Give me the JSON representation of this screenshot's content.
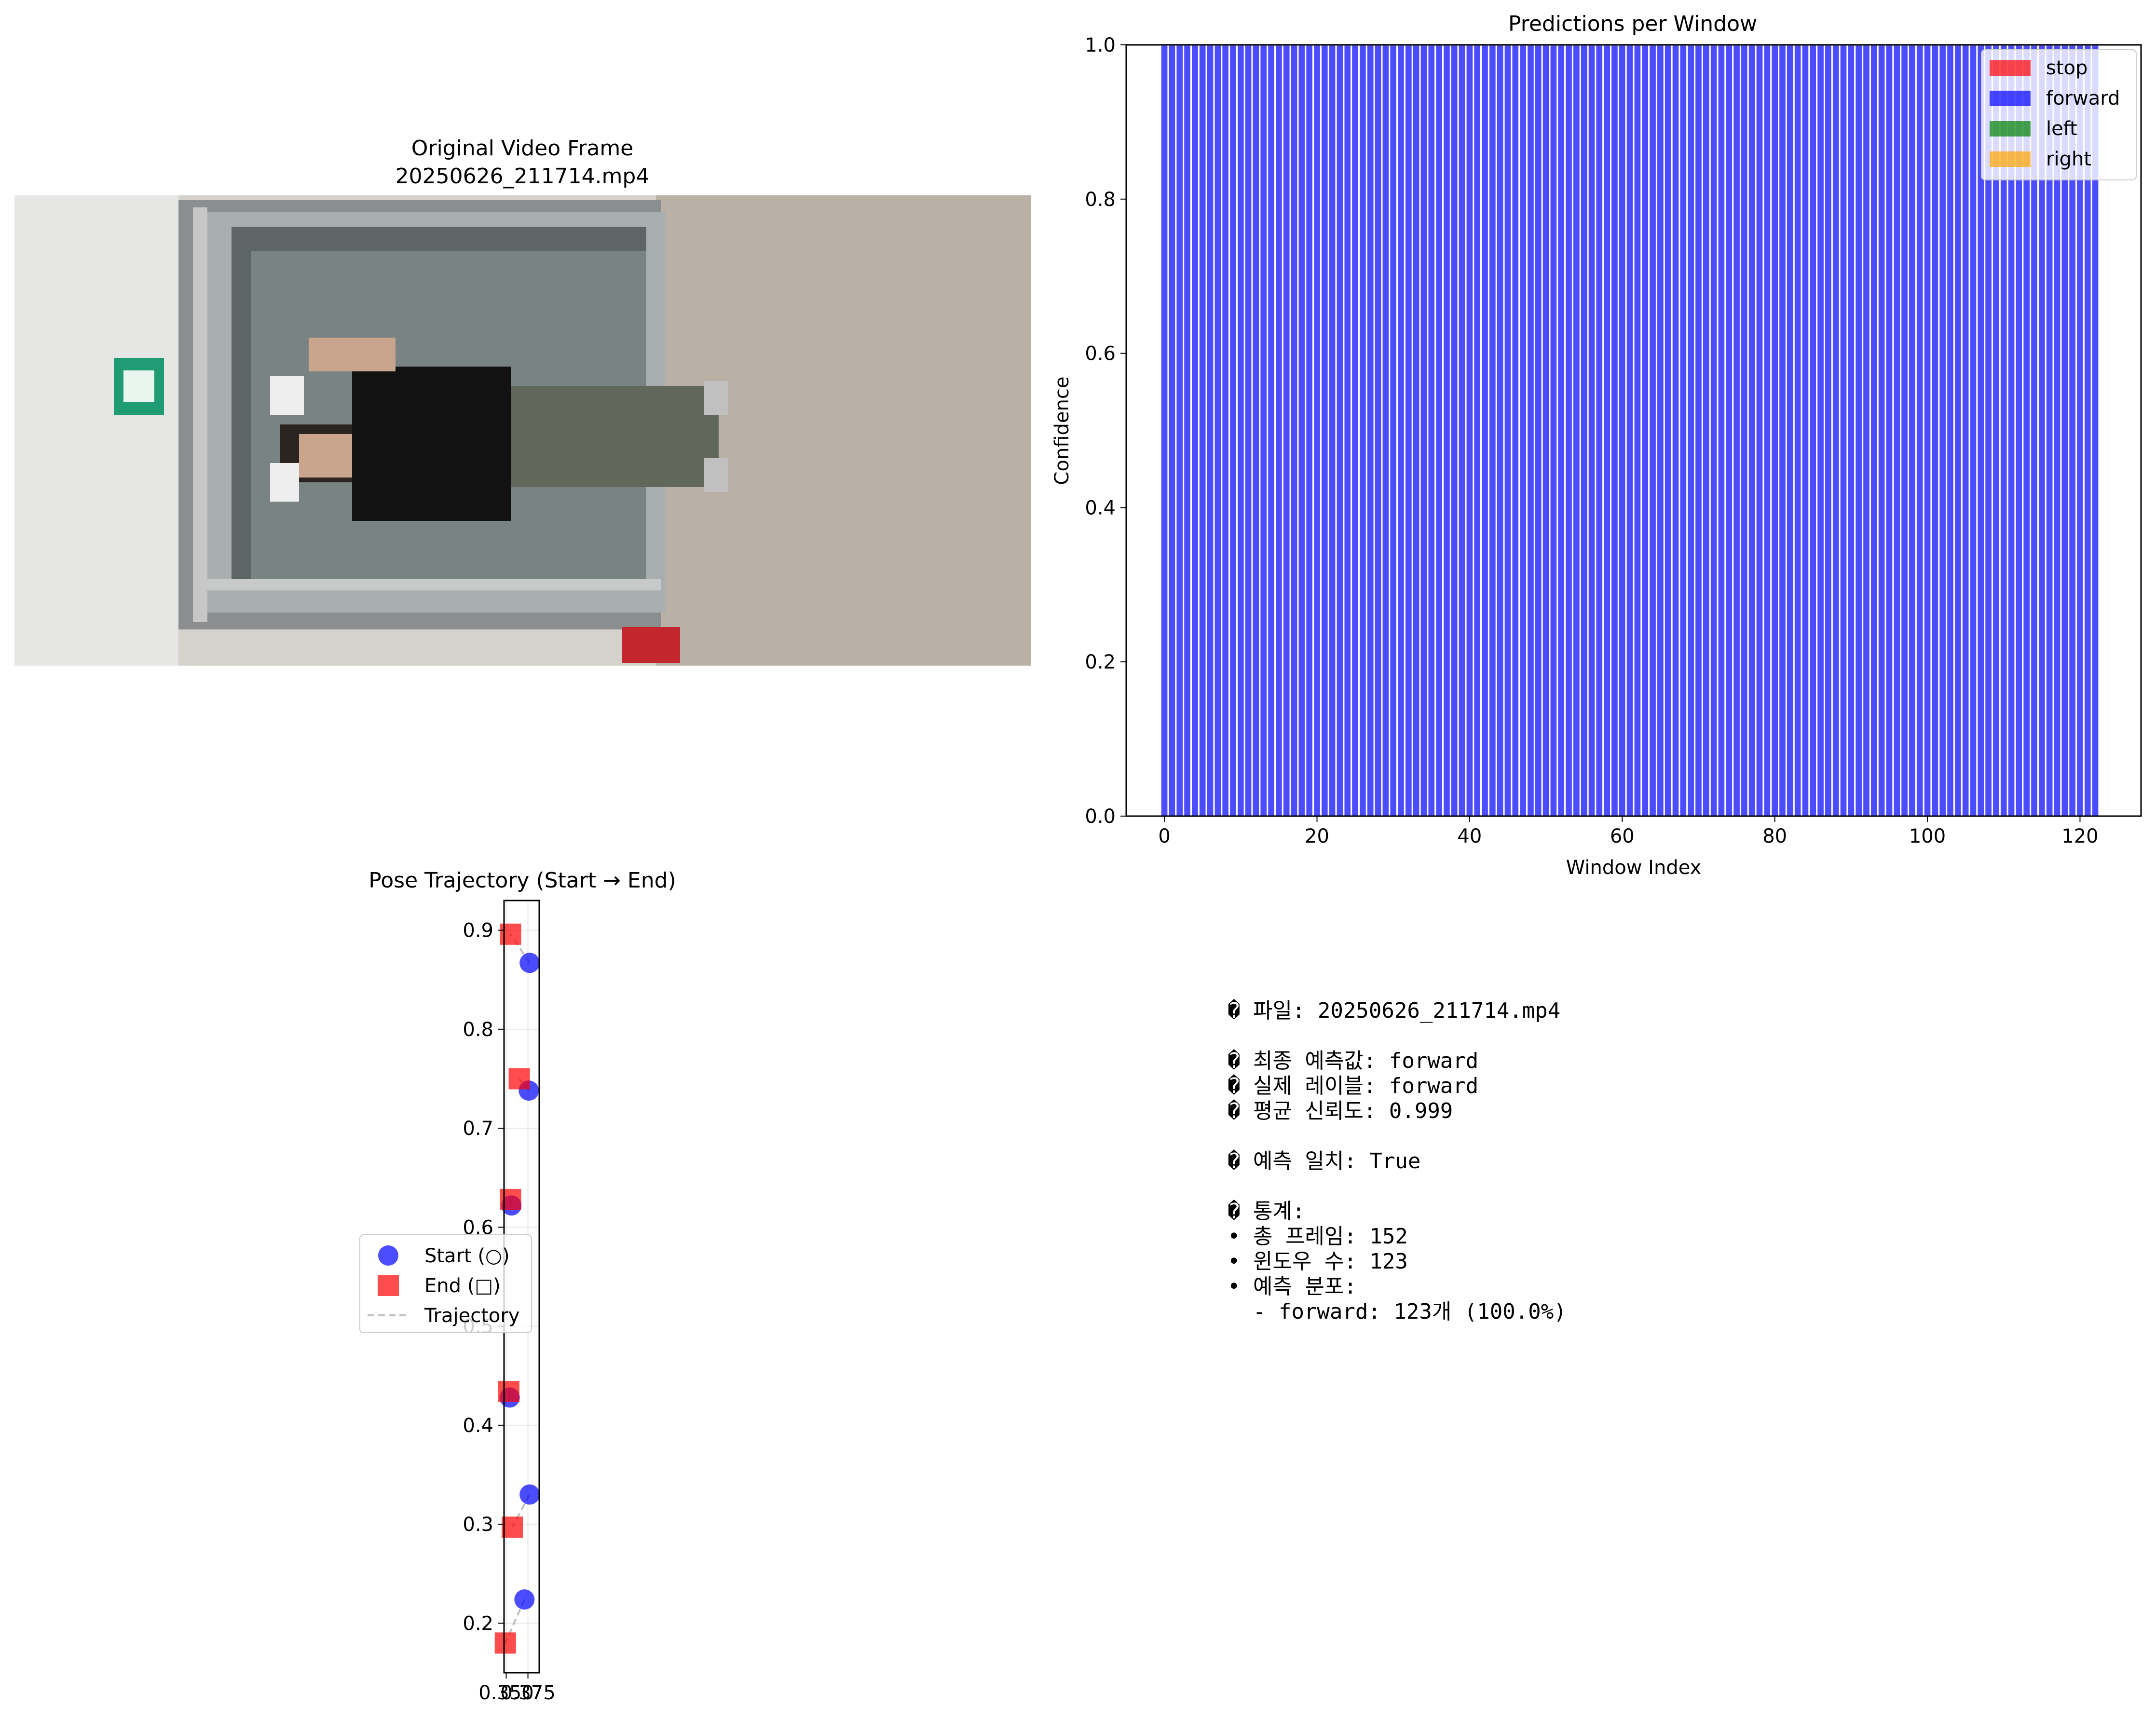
{
  "frame_panel": {
    "title_line1": "Original Video Frame",
    "title_line2": "20250626_211714.mp4"
  },
  "chart_data": [
    {
      "type": "bar",
      "title": "Predictions per Window",
      "xlabel": "Window Index",
      "ylabel": "Confidence",
      "xlim": [
        -5.0,
        128.0
      ],
      "ylim": [
        0.0,
        1.0
      ],
      "xticks": [
        "0",
        "20",
        "40",
        "60",
        "80",
        "100",
        "120"
      ],
      "yticks": [
        "0.0",
        "0.2",
        "0.4",
        "0.6",
        "0.8",
        "1.0"
      ],
      "legend_position": "upper right",
      "legend": [
        "stop",
        "forward",
        "left",
        "right"
      ],
      "class_colors": {
        "stop": "#ff0000",
        "forward": "#0000ff",
        "left": "#008000",
        "right": "#ffa500"
      },
      "n_windows": 123,
      "predicted_class": "forward",
      "series": [
        {
          "name": "forward",
          "value_per_window": 0.999,
          "count": 123
        }
      ]
    },
    {
      "type": "scatter",
      "title": "Pose Trajectory (Start → End)",
      "xlim": [
        0.3475,
        0.388
      ],
      "ylim": [
        0.15,
        0.93
      ],
      "xticks": [
        "0.350",
        "0.375"
      ],
      "yticks": [
        "0.2",
        "0.3",
        "0.4",
        "0.5",
        "0.6",
        "0.7",
        "0.8",
        "0.9"
      ],
      "grid": true,
      "legend_position": "center left",
      "legend": [
        "Start (○)",
        "End (□)",
        "Trajectory"
      ],
      "series": [
        {
          "name": "Start (○)",
          "marker": "circle",
          "color": "#0000ff",
          "points": [
            [
              0.377,
              0.867
            ],
            [
              0.376,
              0.738
            ],
            [
              0.356,
              0.622
            ],
            [
              0.354,
              0.428
            ],
            [
              0.377,
              0.33
            ],
            [
              0.371,
              0.224
            ]
          ]
        },
        {
          "name": "End (□)",
          "marker": "square",
          "color": "#ff0000",
          "points": [
            [
              0.355,
              0.896
            ],
            [
              0.365,
              0.75
            ],
            [
              0.355,
              0.628
            ],
            [
              0.353,
              0.434
            ],
            [
              0.357,
              0.297
            ],
            [
              0.349,
              0.18
            ]
          ]
        }
      ]
    }
  ],
  "summary": {
    "lines": [
      "� 파일: 20250626_211714.mp4",
      "",
      "� 최종 예측값: forward",
      "� 실제 레이블: forward",
      "� 평균 신뢰도: 0.999",
      "",
      "� 예측 일치: True",
      "",
      "� 통계:",
      "• 총 프레임: 152",
      "• 윈도우 수: 123",
      "• 예측 분포:",
      "  - forward: 123개 (100.0%)"
    ]
  }
}
